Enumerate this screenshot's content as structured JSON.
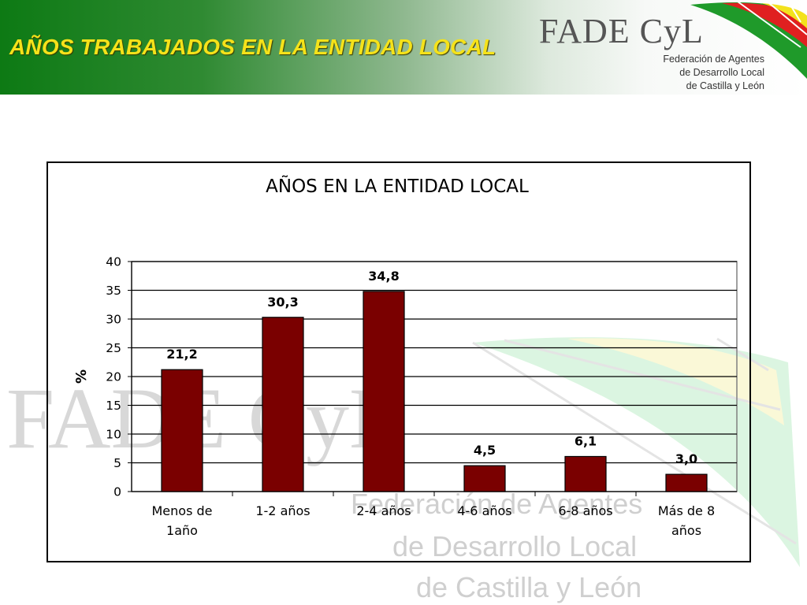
{
  "header": {
    "title": "AÑOS TRABAJADOS EN LA ENTIDAD LOCAL",
    "logo": {
      "wordmark": "FADE CyL",
      "subtitle_lines": [
        "Federación de Agentes",
        "de Desarrollo Local",
        "de Castilla y León"
      ]
    }
  },
  "watermark": {
    "wordmark": "FADE CyL",
    "lines": [
      "Federación de Agentes",
      "de Desarrollo Local",
      "de Castilla y León"
    ]
  },
  "colors": {
    "header_green": "#0d7a14",
    "title_yellow": "#f5e21a",
    "bar_fill": "#7a0000",
    "emblem_green": "#1f9a2a",
    "emblem_red": "#d81e1e",
    "emblem_yellow": "#f3e21c"
  },
  "chart_data": {
    "type": "bar",
    "title": "AÑOS EN LA ENTIDAD LOCAL",
    "xlabel": "",
    "ylabel": "%",
    "categories": [
      [
        "Menos de",
        "1año"
      ],
      [
        "1-2 años"
      ],
      [
        "2-4 años"
      ],
      [
        "4-6 años"
      ],
      [
        "6-8 años"
      ],
      [
        "Más de 8",
        "años"
      ]
    ],
    "values": [
      21.2,
      30.3,
      34.8,
      4.5,
      6.1,
      3.0
    ],
    "data_labels": [
      "21,2",
      "30,3",
      "34,8",
      "4,5",
      "6,1",
      "3,0"
    ],
    "ylim": [
      0,
      40
    ],
    "yticks": [
      0,
      5,
      10,
      15,
      20,
      25,
      30,
      35,
      40
    ],
    "grid": true,
    "legend": "none"
  }
}
